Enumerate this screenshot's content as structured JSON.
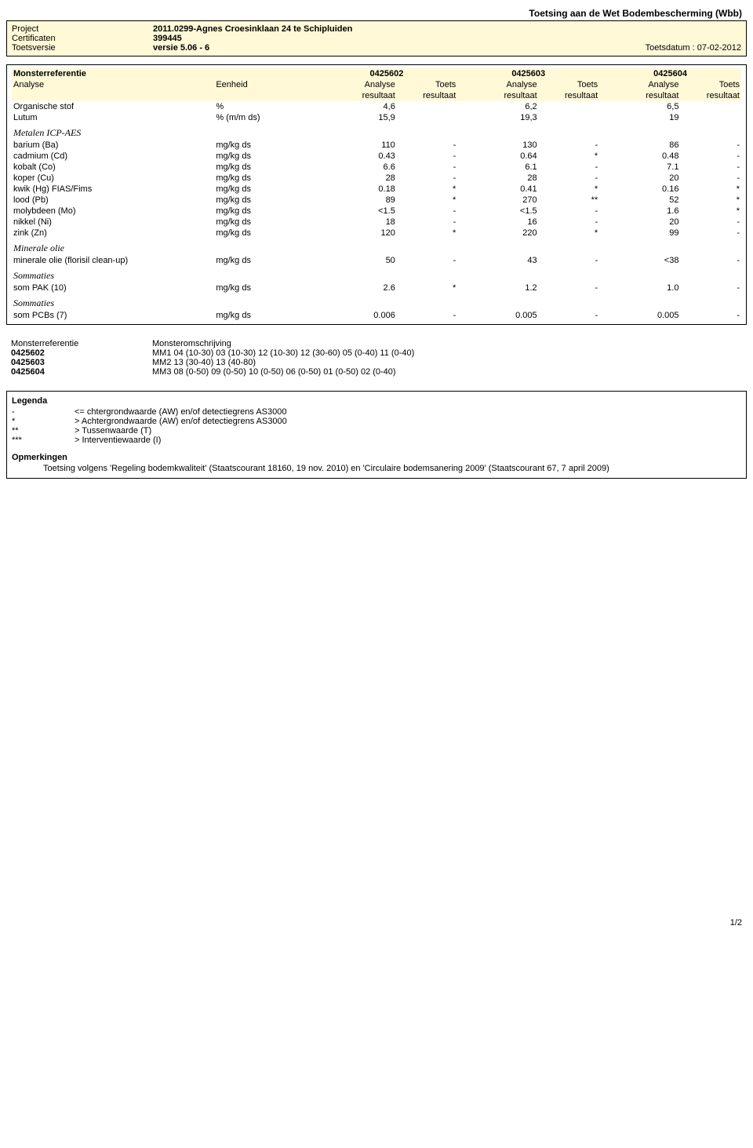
{
  "doc_title": "Toetsing aan de Wet Bodembescherming (Wbb)",
  "header": {
    "labels": {
      "project": "Project",
      "certificaten": "Certificaten",
      "toetsversie": "Toetsversie"
    },
    "project": "2011.0299-Agnes Croesinklaan 24 te Schipluiden",
    "certificaten": "399445",
    "toetsversie": "versie 5.06 - 6",
    "toetsdatum_label": "Toetsdatum :",
    "toetsdatum": "07-02-2012"
  },
  "table": {
    "hdr": {
      "monsterreferentie": "Monsterreferentie",
      "analyse": "Analyse",
      "eenheid": "Eenheid",
      "analyse_resultaat": "Analyse resultaat",
      "toets_resultaat": "Toets resultaat",
      "analyse_l1": "Analyse",
      "analyse_l2": "resultaat",
      "toets_l1": "Toets",
      "toets_l2": "resultaat"
    },
    "refs": [
      "0425602",
      "0425603",
      "0425604"
    ],
    "top_rows": [
      {
        "label": "Organische stof",
        "unit": "%",
        "v": [
          "4,6",
          "",
          "6,2",
          "",
          "6,5",
          ""
        ]
      },
      {
        "label": "Lutum",
        "unit": "% (m/m ds)",
        "v": [
          "15,9",
          "",
          "19,3",
          "",
          "19",
          ""
        ]
      }
    ],
    "sections": [
      {
        "title": "Metalen ICP-AES",
        "rows": [
          {
            "label": "barium (Ba)",
            "unit": "mg/kg ds",
            "v": [
              "110",
              "-",
              "130",
              "-",
              "86",
              "-"
            ]
          },
          {
            "label": "cadmium (Cd)",
            "unit": "mg/kg ds",
            "v": [
              "0.43",
              "-",
              "0.64",
              "*",
              "0.48",
              "-"
            ]
          },
          {
            "label": "kobalt (Co)",
            "unit": "mg/kg ds",
            "v": [
              "6.6",
              "-",
              "6.1",
              "-",
              "7.1",
              "-"
            ]
          },
          {
            "label": "koper (Cu)",
            "unit": "mg/kg ds",
            "v": [
              "28",
              "-",
              "28",
              "-",
              "20",
              "-"
            ]
          },
          {
            "label": "kwik (Hg) FIAS/Fims",
            "unit": "mg/kg ds",
            "v": [
              "0.18",
              "*",
              "0.41",
              "*",
              "0.16",
              "*"
            ]
          },
          {
            "label": "lood (Pb)",
            "unit": "mg/kg ds",
            "v": [
              "89",
              "*",
              "270",
              "**",
              "52",
              "*"
            ]
          },
          {
            "label": "molybdeen (Mo)",
            "unit": "mg/kg ds",
            "v": [
              "<1.5",
              "-",
              "<1.5",
              "-",
              "1.6",
              "*"
            ]
          },
          {
            "label": "nikkel (Ni)",
            "unit": "mg/kg ds",
            "v": [
              "18",
              "-",
              "16",
              "-",
              "20",
              "-"
            ]
          },
          {
            "label": "zink (Zn)",
            "unit": "mg/kg ds",
            "v": [
              "120",
              "*",
              "220",
              "*",
              "99",
              "-"
            ]
          }
        ]
      },
      {
        "title": "Minerale olie",
        "rows": [
          {
            "label": "minerale olie (florisil clean-up)",
            "unit": "mg/kg ds",
            "v": [
              "50",
              "-",
              "43",
              "-",
              "<38",
              "-"
            ]
          }
        ]
      },
      {
        "title": "Sommaties",
        "rows": [
          {
            "label": "som PAK (10)",
            "unit": "mg/kg ds",
            "v": [
              "2.6",
              "*",
              "1.2",
              "-",
              "1.0",
              "-"
            ]
          }
        ]
      },
      {
        "title": "Sommaties",
        "rows": [
          {
            "label": "som PCBs (7)",
            "unit": "mg/kg ds",
            "v": [
              "0.006",
              "-",
              "0.005",
              "-",
              "0.005",
              "-"
            ]
          }
        ]
      }
    ]
  },
  "desc": {
    "hdr_ref": "Monsterreferentie",
    "hdr_desc": "Monsteromschrijving",
    "rows": [
      {
        "ref": "0425602",
        "desc": "MM1 04 (10-30) 03 (10-30) 12 (10-30) 12 (30-60) 05 (0-40) 11 (0-40)"
      },
      {
        "ref": "0425603",
        "desc": "MM2 13 (30-40) 13 (40-80)"
      },
      {
        "ref": "0425604",
        "desc": "MM3 08 (0-50) 09 (0-50) 10 (0-50) 06 (0-50) 01 (0-50) 02 (0-40)"
      }
    ]
  },
  "legend": {
    "title": "Legenda",
    "rows": [
      {
        "sym": "-",
        "txt": "<= chtergrondwaarde (AW) en/of detectiegrens AS3000"
      },
      {
        "sym": "*",
        "txt": "> Achtergrondwaarde (AW) en/of detectiegrens AS3000"
      },
      {
        "sym": "**",
        "txt": "> Tussenwaarde (T)"
      },
      {
        "sym": "***",
        "txt": "> Interventiewaarde (I)"
      }
    ],
    "opm_title": "Opmerkingen",
    "opm_text": "Toetsing volgens 'Regeling bodemkwaliteit' (Staatscourant 18160, 19 nov. 2010) en 'Circulaire bodemsanering 2009' (Staatscourant 67, 7 april 2009)"
  },
  "footer": {
    "page": "1/2"
  },
  "colors": {
    "highlight_bg": "#fff9d8",
    "border": "#000000",
    "text": "#000000",
    "page_bg": "#ffffff"
  }
}
